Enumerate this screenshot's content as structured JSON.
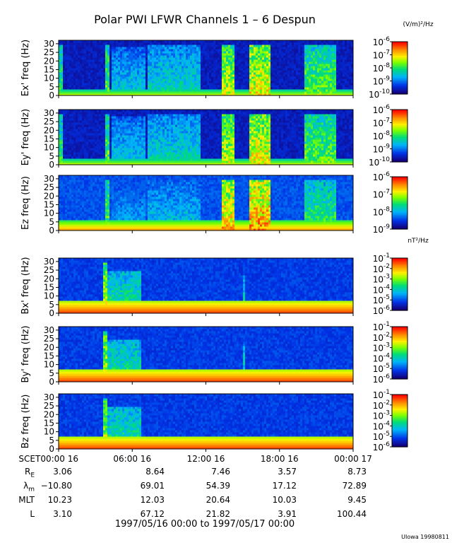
{
  "title": "Polar PWI LFWR Channels 1 – 6 Despun",
  "footer": "1997/05/16 00:00 to 1997/05/17 00:00",
  "credit": "UIowa 19980811",
  "chart_data": {
    "type": "heatmap",
    "x_ticks": [
      "SCET00:00 16",
      "06:00 16",
      "12:00 16",
      "18:00 16",
      "00:00 17"
    ],
    "x_range_hours": [
      0,
      24
    ],
    "y_ticks": [
      0,
      5,
      10,
      15,
      20,
      25,
      30
    ],
    "y_range": [
      0,
      32
    ],
    "panels": [
      {
        "ylabel": "Ex' freq (Hz)",
        "colorbar": {
          "unit": "(V/m)²/Hz",
          "ticks": [
            {
              "base": "10",
              "exp": "-6"
            },
            {
              "base": "10",
              "exp": "-7"
            },
            {
              "base": "10",
              "exp": "-8"
            },
            {
              "base": "10",
              "exp": "-9"
            },
            {
              "base": "10",
              "exp": "-10"
            }
          ],
          "log_range": [
            -10,
            -6
          ]
        },
        "floor_level": 0.05,
        "line_band_hz": 4,
        "line_band_level": 0.35,
        "bursts": [
          {
            "t_start": 0.0,
            "t_end": 0.3,
            "level": 0.55,
            "f_max": 30
          },
          {
            "t_start": 3.8,
            "t_end": 4.2,
            "level": 0.6,
            "f_max": 30
          },
          {
            "t_start": 4.3,
            "t_end": 7.0,
            "level": 0.4,
            "f_max": 28
          },
          {
            "t_start": 7.2,
            "t_end": 11.5,
            "level": 0.45,
            "f_max": 30
          },
          {
            "t_start": 13.3,
            "t_end": 14.3,
            "level": 0.7,
            "f_max": 30
          },
          {
            "t_start": 15.6,
            "t_end": 17.3,
            "level": 0.75,
            "f_max": 30
          },
          {
            "t_start": 20.0,
            "t_end": 22.7,
            "level": 0.6,
            "f_max": 30
          }
        ]
      },
      {
        "ylabel": "Ey' freq (Hz)",
        "colorbar": {
          "unit": "",
          "ticks": [
            {
              "base": "10",
              "exp": "-6"
            },
            {
              "base": "10",
              "exp": "-7"
            },
            {
              "base": "10",
              "exp": "-8"
            },
            {
              "base": "10",
              "exp": "-9"
            },
            {
              "base": "10",
              "exp": "-10"
            }
          ],
          "log_range": [
            -10,
            -6
          ]
        },
        "floor_level": 0.05,
        "line_band_hz": 4,
        "line_band_level": 0.35,
        "bursts": [
          {
            "t_start": 0.0,
            "t_end": 0.3,
            "level": 0.55,
            "f_max": 30
          },
          {
            "t_start": 3.8,
            "t_end": 4.2,
            "level": 0.6,
            "f_max": 30
          },
          {
            "t_start": 4.3,
            "t_end": 7.0,
            "level": 0.4,
            "f_max": 28
          },
          {
            "t_start": 7.2,
            "t_end": 11.5,
            "level": 0.45,
            "f_max": 30
          },
          {
            "t_start": 13.3,
            "t_end": 14.3,
            "level": 0.7,
            "f_max": 30
          },
          {
            "t_start": 15.6,
            "t_end": 17.3,
            "level": 0.75,
            "f_max": 30
          },
          {
            "t_start": 20.0,
            "t_end": 22.7,
            "level": 0.6,
            "f_max": 30
          }
        ]
      },
      {
        "ylabel": "Ez freq (Hz)",
        "colorbar": {
          "unit": "",
          "ticks": [
            {
              "base": "10",
              "exp": "-6"
            },
            {
              "base": "10",
              "exp": "-7"
            },
            {
              "base": "10",
              "exp": "-8"
            },
            {
              "base": "10",
              "exp": "-9"
            }
          ],
          "log_range": [
            -9,
            -6
          ]
        },
        "floor_level": 0.15,
        "line_band_hz": 6,
        "line_band_level": 0.5,
        "bursts": [
          {
            "t_start": 3.8,
            "t_end": 4.2,
            "level": 0.6,
            "f_max": 30
          },
          {
            "t_start": 4.3,
            "t_end": 7.0,
            "level": 0.35,
            "f_max": 28
          },
          {
            "t_start": 7.2,
            "t_end": 11.5,
            "level": 0.4,
            "f_max": 30
          },
          {
            "t_start": 13.3,
            "t_end": 14.3,
            "level": 0.8,
            "f_max": 30
          },
          {
            "t_start": 15.6,
            "t_end": 17.3,
            "level": 0.85,
            "f_max": 30
          },
          {
            "t_start": 20.0,
            "t_end": 22.7,
            "level": 0.55,
            "f_max": 30
          }
        ]
      },
      {
        "ylabel": "Bx' freq (Hz)",
        "colorbar": {
          "unit": "nT²/Hz",
          "ticks": [
            {
              "base": "10",
              "exp": "-1"
            },
            {
              "base": "10",
              "exp": "-2"
            },
            {
              "base": "10",
              "exp": "-3"
            },
            {
              "base": "10",
              "exp": "-4"
            },
            {
              "base": "10",
              "exp": "-5"
            },
            {
              "base": "10",
              "exp": "-6"
            }
          ],
          "log_range": [
            -6,
            -1
          ]
        },
        "floor_level": 0.12,
        "line_band_hz": 8,
        "line_band_level": 0.6,
        "bursts": [
          {
            "t_start": 3.7,
            "t_end": 4.0,
            "level": 0.7,
            "f_max": 30
          },
          {
            "t_start": 4.0,
            "t_end": 6.8,
            "level": 0.5,
            "f_max": 25
          },
          {
            "t_start": 15.0,
            "t_end": 15.2,
            "level": 0.45,
            "f_max": 22
          }
        ]
      },
      {
        "ylabel": "By' freq (Hz)",
        "colorbar": {
          "unit": "",
          "ticks": [
            {
              "base": "10",
              "exp": "-1"
            },
            {
              "base": "10",
              "exp": "-2"
            },
            {
              "base": "10",
              "exp": "-3"
            },
            {
              "base": "10",
              "exp": "-4"
            },
            {
              "base": "10",
              "exp": "-5"
            },
            {
              "base": "10",
              "exp": "-6"
            }
          ],
          "log_range": [
            -6,
            -1
          ]
        },
        "floor_level": 0.12,
        "line_band_hz": 8,
        "line_band_level": 0.6,
        "bursts": [
          {
            "t_start": 3.7,
            "t_end": 4.0,
            "level": 0.7,
            "f_max": 30
          },
          {
            "t_start": 4.0,
            "t_end": 6.8,
            "level": 0.5,
            "f_max": 25
          },
          {
            "t_start": 15.0,
            "t_end": 15.2,
            "level": 0.45,
            "f_max": 22
          }
        ]
      },
      {
        "ylabel": "Bz freq (Hz)",
        "colorbar": {
          "unit": "",
          "ticks": [
            {
              "base": "10",
              "exp": "-1"
            },
            {
              "base": "10",
              "exp": "-2"
            },
            {
              "base": "10",
              "exp": "-3"
            },
            {
              "base": "10",
              "exp": "-4"
            },
            {
              "base": "10",
              "exp": "-5"
            },
            {
              "base": "10",
              "exp": "-6"
            }
          ],
          "log_range": [
            -6,
            -1
          ]
        },
        "floor_level": 0.12,
        "line_band_hz": 8,
        "line_band_level": 0.6,
        "bursts": [
          {
            "t_start": 3.7,
            "t_end": 4.0,
            "level": 0.7,
            "f_max": 30
          },
          {
            "t_start": 4.0,
            "t_end": 6.8,
            "level": 0.5,
            "f_max": 25
          }
        ]
      }
    ],
    "ephemeris": [
      {
        "label": "R",
        "sub": "E",
        "values": [
          "3.06",
          "8.64",
          "7.46",
          "3.57",
          "8.73"
        ]
      },
      {
        "label": "λ",
        "sub": "m",
        "values": [
          "−10.80",
          "69.01",
          "54.39",
          "17.12",
          "72.89"
        ]
      },
      {
        "label": "MLT",
        "sub": "",
        "values": [
          "10.23",
          "12.03",
          "20.64",
          "10.03",
          "9.45"
        ]
      },
      {
        "label": "L",
        "sub": "",
        "values": [
          "3.10",
          "67.12",
          "21.82",
          "3.91",
          "100.44"
        ]
      }
    ]
  }
}
